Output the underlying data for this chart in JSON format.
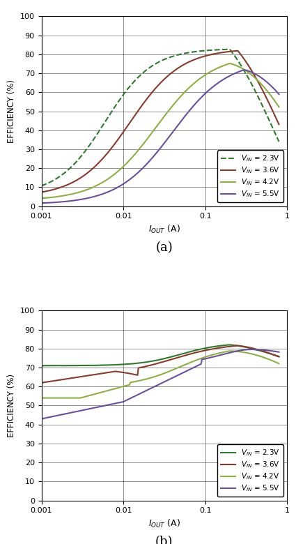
{
  "colors": {
    "v23": "#2d7a2d",
    "v36": "#8b3a2a",
    "v42": "#8db040",
    "v55": "#6a4fa0"
  },
  "xlabel": "I_{OUT} (A)",
  "ylabel": "EFFICIENCY (%)",
  "xlim": [
    0.001,
    1
  ],
  "ylim": [
    0,
    100
  ],
  "label_a": "(a)",
  "label_b": "(b)"
}
